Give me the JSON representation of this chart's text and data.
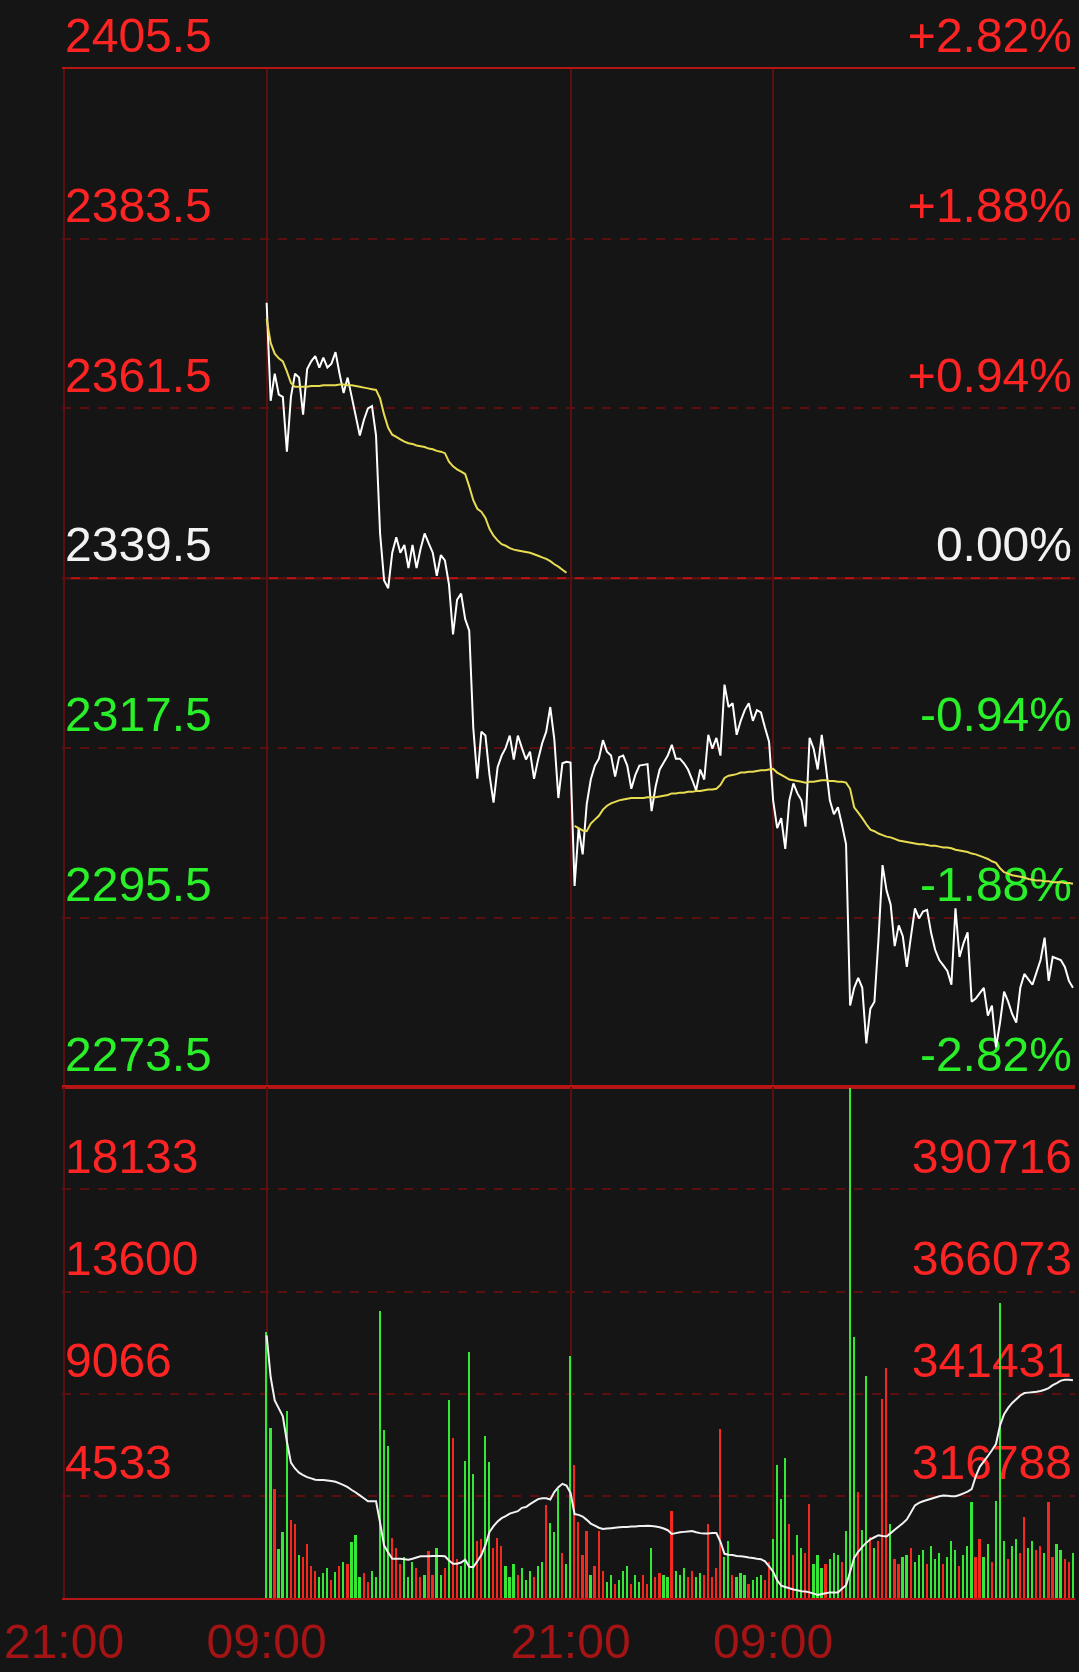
{
  "chart_data": [
    {
      "type": "line",
      "categories": [
        null,
        null,
        null,
        null,
        null,
        null,
        null,
        null,
        null,
        null,
        null,
        null,
        null,
        null,
        null,
        null,
        null,
        null,
        null,
        null,
        null,
        null,
        null,
        null,
        null,
        null,
        null,
        null,
        null,
        null,
        null,
        null,
        null,
        null,
        null,
        null,
        null,
        null,
        null,
        null,
        null,
        null,
        null,
        null,
        null,
        null,
        null,
        null,
        null,
        null,
        null,
        null,
        null,
        null,
        null,
        null,
        null,
        null,
        null,
        null,
        null,
        null,
        null,
        null,
        null,
        null,
        null,
        null,
        null,
        null,
        null,
        null,
        null,
        null,
        null,
        null,
        null,
        null,
        null,
        null,
        null,
        null,
        null,
        null,
        null,
        null,
        null,
        null,
        null,
        null,
        null,
        null,
        null,
        null,
        null,
        null,
        null,
        null,
        null,
        null,
        null,
        null,
        null,
        null,
        null,
        null,
        null,
        null,
        null,
        null,
        null,
        null,
        null,
        null,
        null,
        null,
        null,
        null,
        null,
        null,
        null,
        null,
        null,
        null,
        null,
        null,
        null,
        null,
        null,
        null,
        null,
        null,
        null,
        null,
        null,
        null,
        null,
        null,
        null,
        null,
        null,
        null,
        null,
        null,
        null,
        null,
        null,
        null,
        null,
        null,
        null,
        null,
        null,
        null,
        null,
        null,
        null,
        null,
        null,
        null,
        null,
        null,
        null,
        null,
        null,
        null,
        null,
        null,
        null,
        null,
        null,
        null,
        null,
        null,
        null,
        null,
        null,
        null,
        null,
        null,
        null,
        null,
        null,
        null,
        null,
        null,
        null,
        null,
        null,
        null,
        null,
        null,
        null,
        null,
        null,
        null,
        null,
        null,
        null,
        null,
        null,
        null,
        null,
        null,
        null,
        null,
        null,
        null,
        null,
        null,
        null,
        null,
        null,
        null,
        null,
        null,
        null,
        null,
        null,
        null,
        null,
        null,
        null,
        null,
        null,
        null,
        null,
        null,
        null,
        null,
        null,
        null,
        null,
        null,
        null,
        null,
        null,
        null,
        null,
        null,
        null,
        null,
        null,
        null,
        null,
        null,
        null,
        null,
        null,
        null
      ],
      "ylim": [
        2273.5,
        2405.5
      ],
      "yticks": [
        2273.5,
        2295.5,
        2317.5,
        2339.5,
        2361.5,
        2383.5,
        2405.5
      ],
      "y2lim": [
        -2.82,
        2.82
      ],
      "y2ticks": [
        {
          "value": -2.82,
          "label": "-2.82%"
        },
        {
          "value": -1.88,
          "label": "-1.88%"
        },
        {
          "value": -0.94,
          "label": "-0.94%"
        },
        {
          "value": 0,
          "label": "0.00%"
        },
        {
          "value": 0.94,
          "label": "+0.94%"
        },
        {
          "value": 1.88,
          "label": "+1.88%"
        },
        {
          "value": 2.82,
          "label": "+2.82%"
        }
      ],
      "grid": true,
      "ref_lines": [
        {
          "axis": "y",
          "value": 2339.5,
          "color": "#c81414"
        }
      ],
      "series": [
        {
          "color": "#ffffff",
          "values": [
            null,
            null,
            null,
            null,
            null,
            null,
            null,
            null,
            null,
            null,
            null,
            null,
            null,
            null,
            null,
            null,
            null,
            null,
            null,
            null,
            null,
            null,
            null,
            null,
            null,
            null,
            null,
            null,
            null,
            null,
            null,
            null,
            null,
            null,
            null,
            null,
            null,
            null,
            null,
            null,
            null,
            null,
            null,
            null,
            null,
            null,
            null,
            null,
            null,
            null,
            2375.2,
            2362.5,
            2366.0,
            2363.3,
            2363.0,
            2355.9,
            2363.0,
            2366.0,
            2365.5,
            2360.7,
            2366.6,
            2367.6,
            2368.3,
            2366.8,
            2368.1,
            2366.8,
            2367.3,
            2368.8,
            2366.0,
            2363.5,
            2365.5,
            2363.0,
            2360.5,
            2358.0,
            2360.0,
            2361.5,
            2361.8,
            2358.0,
            2345.3,
            2339.2,
            2338.2,
            2342.8,
            2344.8,
            2342.8,
            2343.8,
            2340.8,
            2343.8,
            2340.8,
            2343.3,
            2345.3,
            2344.0,
            2342.8,
            2339.8,
            2342.5,
            2341.8,
            2338.7,
            2332.2,
            2336.7,
            2337.5,
            2334.2,
            2332.7,
            2320.1,
            2313.5,
            2319.6,
            2319.1,
            2314.0,
            2310.4,
            2315.0,
            2316.5,
            2317.5,
            2319.1,
            2316.0,
            2319.1,
            2317.5,
            2316.0,
            2317.0,
            2313.5,
            2316.0,
            2318.1,
            2319.6,
            2322.8,
            2318.6,
            2311.0,
            2315.5,
            2315.7,
            2315.6,
            2299.6,
            2307.1,
            2303.7,
            2310.2,
            2313.4,
            2315.2,
            2316.1,
            2318.5,
            2317.0,
            2316.5,
            2313.8,
            2316.3,
            2316.5,
            2315.2,
            2312.2,
            2314.0,
            2315.2,
            2315.3,
            2315.4,
            2309.3,
            2312.5,
            2314.7,
            2315.6,
            2316.5,
            2317.9,
            2316.1,
            2316.1,
            2315.5,
            2314.7,
            2313.4,
            2312.0,
            2314.7,
            2313.4,
            2319.2,
            2317.4,
            2318.8,
            2316.5,
            2325.7,
            2322.8,
            2323.3,
            2319.2,
            2321.0,
            2322.4,
            2323.3,
            2321.0,
            2322.4,
            2322.1,
            2320.1,
            2318.3,
            2310.7,
            2307.1,
            2308.4,
            2304.4,
            2310.7,
            2312.9,
            2311.6,
            2310.7,
            2307.3,
            2318.8,
            2317.4,
            2314.7,
            2319.2,
            2315.2,
            2310.7,
            2308.9,
            2309.8,
            2307.5,
            2305.0,
            2284.1,
            2286.4,
            2287.7,
            2286.4,
            2279.2,
            2283.7,
            2284.6,
            2292.7,
            2302.3,
            2299.0,
            2297.2,
            2291.8,
            2294.5,
            2293.1,
            2289.1,
            2293.0,
            2296.7,
            2295.4,
            2296.3,
            2296.5,
            2293.5,
            2291.3,
            2290.0,
            2289.3,
            2288.6,
            2286.8,
            2296.7,
            2290.4,
            2292.2,
            2293.6,
            2284.6,
            2285.0,
            2285.7,
            2286.4,
            2282.8,
            2284.1,
            2278.7,
            2281.9,
            2285.9,
            2284.6,
            2283.0,
            2281.9,
            2286.4,
            2288.2,
            2287.5,
            2286.8,
            2288.4,
            2290.0,
            2292.9,
            2287.3,
            2290.4,
            2290.2,
            2290.0,
            2289.1,
            2287.3,
            2286.4
          ]
        },
        {
          "color": "#e8dc50",
          "values": [
            null,
            null,
            null,
            null,
            null,
            null,
            null,
            null,
            null,
            null,
            null,
            null,
            null,
            null,
            null,
            null,
            null,
            null,
            null,
            null,
            null,
            null,
            null,
            null,
            null,
            null,
            null,
            null,
            null,
            null,
            null,
            null,
            null,
            null,
            null,
            null,
            null,
            null,
            null,
            null,
            null,
            null,
            null,
            null,
            null,
            null,
            null,
            null,
            null,
            null,
            2373.1,
            2370.0,
            2368.6,
            2368.0,
            2367.6,
            2366.3,
            2364.8,
            2364.3,
            2364.3,
            2364.3,
            2364.3,
            2364.4,
            2364.4,
            2364.4,
            2364.5,
            2364.5,
            2364.5,
            2364.5,
            2364.6,
            2364.6,
            2364.5,
            2364.5,
            2364.4,
            2364.3,
            2364.2,
            2364.1,
            2364.0,
            2363.9,
            2362.8,
            2360.7,
            2359.0,
            2358.1,
            2357.8,
            2357.5,
            2357.2,
            2357.0,
            2356.9,
            2356.7,
            2356.6,
            2356.5,
            2356.3,
            2356.2,
            2356.0,
            2355.9,
            2355.7,
            2354.6,
            2354.0,
            2353.6,
            2353.3,
            2353.0,
            2351.4,
            2349.6,
            2348.5,
            2348.1,
            2347.3,
            2345.9,
            2345.0,
            2344.4,
            2343.9,
            2343.7,
            2343.4,
            2343.2,
            2343.1,
            2343.0,
            2342.9,
            2342.8,
            2342.6,
            2342.4,
            2342.2,
            2342.0,
            2341.7,
            2341.3,
            2341.0,
            2340.6,
            2340.2,
            null,
            2307.4,
            2307.1,
            2306.8,
            2306.7,
            2307.7,
            2308.2,
            2308.7,
            2309.5,
            2310.0,
            2310.3,
            2310.5,
            2310.7,
            2310.8,
            2310.9,
            2311.0,
            2311.0,
            2311.0,
            2311.0,
            2311.1,
            2311.1,
            2311.1,
            2311.2,
            2311.3,
            2311.4,
            2311.6,
            2311.6,
            2311.7,
            2311.7,
            2311.8,
            2311.8,
            2311.9,
            2311.9,
            2312.0,
            2312.1,
            2312.1,
            2312.2,
            2312.7,
            2313.6,
            2313.9,
            2314.0,
            2314.1,
            2314.3,
            2314.3,
            2314.4,
            2314.4,
            2314.5,
            2314.6,
            2314.6,
            2314.7,
            2314.8,
            2314.3,
            2314.0,
            2313.7,
            2313.4,
            2313.3,
            2313.2,
            2313.1,
            2313.0,
            2313.1,
            2313.1,
            2313.2,
            2313.3,
            2313.3,
            2313.2,
            2313.2,
            2313.1,
            2313.1,
            2313.0,
            2312.2,
            2309.8,
            2309.1,
            2308.4,
            2307.6,
            2306.9,
            2306.7,
            2306.4,
            2306.2,
            2306.0,
            2305.9,
            2305.7,
            2305.5,
            2305.4,
            2305.3,
            2305.2,
            2305.1,
            2305.0,
            2305.0,
            2304.9,
            2304.8,
            2304.8,
            2304.7,
            2304.6,
            2304.6,
            2304.5,
            2304.3,
            2304.2,
            2304.1,
            2304.0,
            2303.8,
            2303.7,
            2303.5,
            2303.3,
            2303.1,
            2302.8,
            2302.6,
            2301.9,
            2301.4,
            2301.2,
            2301.0,
            2300.9,
            2300.8,
            2300.7,
            2300.5,
            2300.4,
            2300.3,
            2300.3,
            2300.2,
            2300.2,
            2300.1,
            2300.1,
            2300.1,
            2300.0,
            2300.0,
            2299.9
          ]
        }
      ]
    },
    {
      "type": "bar",
      "categories": [
        "21:00",
        null,
        null,
        null,
        null,
        null,
        null,
        null,
        null,
        null,
        null,
        null,
        null,
        null,
        null,
        null,
        null,
        null,
        null,
        null,
        null,
        null,
        null,
        null,
        null,
        null,
        null,
        null,
        null,
        null,
        null,
        null,
        null,
        null,
        null,
        null,
        null,
        null,
        null,
        null,
        null,
        null,
        null,
        null,
        null,
        null,
        null,
        null,
        null,
        null,
        "09:00",
        null,
        null,
        null,
        null,
        null,
        null,
        null,
        null,
        null,
        null,
        null,
        null,
        null,
        null,
        null,
        null,
        null,
        null,
        null,
        null,
        null,
        null,
        null,
        null,
        null,
        null,
        null,
        null,
        null,
        null,
        null,
        null,
        null,
        null,
        null,
        null,
        null,
        null,
        null,
        null,
        null,
        null,
        null,
        null,
        null,
        null,
        null,
        null,
        null,
        null,
        null,
        null,
        null,
        null,
        null,
        null,
        null,
        null,
        null,
        null,
        null,
        null,
        null,
        null,
        null,
        null,
        null,
        null,
        null,
        null,
        null,
        null,
        null,
        null,
        "21:00",
        null,
        null,
        null,
        null,
        null,
        null,
        null,
        null,
        null,
        null,
        null,
        null,
        null,
        null,
        null,
        null,
        null,
        null,
        null,
        null,
        null,
        null,
        null,
        null,
        null,
        null,
        null,
        null,
        null,
        null,
        null,
        null,
        null,
        null,
        null,
        null,
        null,
        null,
        null,
        null,
        null,
        null,
        null,
        null,
        null,
        null,
        null,
        null,
        null,
        "09:00",
        null,
        null,
        null,
        null,
        null,
        null,
        null,
        null,
        null,
        null,
        null,
        null,
        null,
        null,
        null,
        null,
        null,
        null,
        null,
        null,
        null,
        null,
        null,
        null,
        null,
        null,
        null,
        null,
        null,
        null,
        null,
        null,
        null,
        null,
        null,
        null,
        null,
        null,
        null,
        null,
        null,
        null,
        null,
        null,
        null,
        null,
        null,
        null,
        null,
        null,
        null,
        null,
        null,
        null,
        null,
        null,
        null,
        null,
        null,
        null,
        null,
        null,
        null,
        null,
        null,
        null,
        null,
        null,
        null,
        null,
        null,
        null,
        null,
        null
      ],
      "ylim": [
        0,
        22666
      ],
      "yticks": [
        4533,
        9066,
        13600,
        18133
      ],
      "y2lim": [
        292145,
        415359
      ],
      "y2ticks": [
        316788,
        341431,
        366073,
        390716
      ],
      "grid": true,
      "series": [
        {
          "values": [
            null,
            null,
            null,
            null,
            null,
            null,
            null,
            null,
            null,
            null,
            null,
            null,
            null,
            null,
            null,
            null,
            null,
            null,
            null,
            null,
            null,
            null,
            null,
            null,
            null,
            null,
            null,
            null,
            null,
            null,
            null,
            null,
            null,
            null,
            null,
            null,
            null,
            null,
            null,
            null,
            null,
            null,
            null,
            null,
            null,
            null,
            null,
            null,
            null,
            null,
            11780,
            7530,
            4830,
            2150,
            2900,
            8270,
            3440,
            3290,
            1900,
            1800,
            2400,
            1400,
            1200,
            900,
            1100,
            1300,
            800,
            1150,
            1400,
            1600,
            1500,
            2490,
            2780,
            900,
            1100,
            700,
            1200,
            900,
            12730,
            7450,
            6730,
            2650,
            2200,
            1500,
            1800,
            900,
            1600,
            1300,
            900,
            1000,
            2050,
            1000,
            2200,
            1000,
            1300,
            8780,
            7100,
            1700,
            1400,
            6070,
            10900,
            5490,
            2500,
            2600,
            7170,
            6000,
            2200,
            2650,
            2300,
            1400,
            900,
            1500,
            1000,
            1300,
            800,
            1200,
            900,
            1400,
            1600,
            4100,
            3300,
            2900,
            4830,
            2000,
            1500,
            10720,
            5900,
            3360,
            1900,
            2950,
            1000,
            1400,
            2950,
            1200,
            700,
            1000,
            600,
            800,
            1200,
            1400,
            600,
            1000,
            700,
            1000,
            600,
            2200,
            900,
            1100,
            1000,
            900,
            3860,
            1200,
            1000,
            1300,
            900,
            1200,
            900,
            1100,
            1000,
            3260,
            900,
            1300,
            7480,
            1800,
            2500,
            1000,
            900,
            1100,
            1000,
            600,
            800,
            900,
            1000,
            800,
            1600,
            2600,
            5900,
            4400,
            6200,
            3260,
            1900,
            2800,
            2200,
            2000,
            4160,
            1500,
            1900,
            1300,
            1500,
            1700,
            2000,
            1900,
            1600,
            2950,
            22600,
            11550,
            4690,
            3000,
            9820,
            2700,
            2200,
            2500,
            8840,
            10190,
            3260,
            1700,
            1500,
            1800,
            1900,
            2200,
            1600,
            1900,
            2100,
            1500,
            2300,
            1700,
            2000,
            1500,
            1800,
            2500,
            2100,
            1400,
            1900,
            2300,
            4240,
            1800,
            2600,
            1800,
            2400,
            1600,
            4310,
            13060,
            2500,
            1700,
            2300,
            2600,
            2000,
            3560,
            2200,
            2500,
            2100,
            2300,
            2000,
            4240,
            1800,
            2400,
            2100,
            1700,
            1600,
            2000
          ],
          "colors": [
            null,
            null,
            null,
            null,
            null,
            null,
            null,
            null,
            null,
            null,
            null,
            null,
            null,
            null,
            null,
            null,
            null,
            null,
            null,
            null,
            null,
            null,
            null,
            null,
            null,
            null,
            null,
            null,
            null,
            null,
            null,
            null,
            null,
            null,
            null,
            null,
            null,
            null,
            null,
            null,
            null,
            null,
            null,
            null,
            null,
            null,
            null,
            null,
            null,
            null,
            "#35e835",
            "#35e835",
            "#f5281e",
            "#35e835",
            "#35e835",
            "#35e835",
            "#f5281e",
            "#f5281e",
            "#35e835",
            "#f5281e",
            "#f5281e",
            "#f5281e",
            "#f5281e",
            "#35e835",
            "#35e835",
            "#35e835",
            "#f5281e",
            "#35e835",
            "#f5281e",
            "#35e835",
            "#f5281e",
            "#35e835",
            "#35e835",
            "#35e835",
            "#f5281e",
            "#f5281e",
            "#35e835",
            "#35e835",
            "#35e835",
            "#35e835",
            "#35e835",
            "#f5281e",
            "#f5281e",
            "#f5281e",
            "#35e835",
            "#35e835",
            "#35e835",
            "#f5281e",
            "#f5281e",
            "#35e835",
            "#f5281e",
            "#f5281e",
            "#35e835",
            "#35e835",
            "#f5281e",
            "#35e835",
            "#f5281e",
            "#f5281e",
            "#35e835",
            "#35e835",
            "#35e835",
            "#35e835",
            "#f5281e",
            "#f5281e",
            "#35e835",
            "#35e835",
            "#f5281e",
            "#f5281e",
            "#f5281e",
            "#35e835",
            "#35e835",
            "#35e835",
            "#f5281e",
            "#35e835",
            "#35e835",
            "#35e835",
            "#f5281e",
            "#35e835",
            "#35e835",
            "#f5281e",
            "#35e835",
            "#35e835",
            "#35e835",
            "#f5281e",
            "#35e835",
            "#35e835",
            "#f5281e",
            "#f5281e",
            "#f5281e",
            "#f5281e",
            "#35e835",
            "#f5281e",
            "#f5281e",
            "#f5281e",
            "#35e835",
            "#35e835",
            "#f5281e",
            "#35e835",
            "#35e835",
            "#35e835",
            "#f5281e",
            "#35e835",
            "#35e835",
            "#f5281e",
            "#f5281e",
            "#35e835",
            "#f5281e",
            "#f5281e",
            "#35e835",
            "#35e835",
            "#f5281e",
            "#35e835",
            "#35e835",
            "#35e835",
            "#f5281e",
            "#f5281e",
            "#35e835",
            "#35e835",
            "#f5281e",
            "#f5281e",
            "#f5281e",
            "#f5281e",
            "#f5281e",
            "#35e835",
            "#35e835",
            "#f5281e",
            "#35e835",
            "#35e835",
            "#35e835",
            "#f5281e",
            "#35e835",
            "#35e835",
            "#35e835",
            "#f5281e",
            "#f5281e",
            "#35e835",
            "#35e835",
            "#35e835",
            "#35e835",
            "#f5281e",
            "#f5281e",
            "#35e835",
            "#35e835",
            "#f5281e",
            "#f5281e",
            "#35e835",
            "#35e835",
            "#35e835",
            "#f5281e",
            "#35e835",
            "#35e835",
            "#35e835",
            "#f5281e",
            "#35e835",
            "#35e835",
            "#35e835",
            "#f5281e",
            "#35e835",
            "#35e835",
            "#f5281e",
            "#35e835",
            "#f5281e",
            "#f5281e",
            "#f5281e",
            "#35e835",
            "#f5281e",
            "#f5281e",
            "#35e835",
            "#35e835",
            "#f5281e",
            "#35e835",
            "#35e835",
            "#35e835",
            "#f5281e",
            "#35e835",
            "#35e835",
            "#35e835",
            "#f5281e",
            "#35e835",
            "#35e835",
            "#35e835",
            "#f5281e",
            "#35e835",
            "#35e835",
            "#35e835",
            "#f5281e",
            "#f5281e",
            "#35e835",
            "#35e835",
            "#f5281e",
            "#35e835",
            "#35e835",
            "#35e835",
            "#f5281e",
            "#35e835",
            "#35e835",
            "#f5281e",
            "#f5281e",
            "#35e835",
            "#35e835",
            "#f5281e",
            "#f5281e",
            "#35e835",
            "#f5281e",
            "#f5281e",
            "#35e835",
            "#35e835",
            "#f5281e",
            "#f5281e",
            "#35e835"
          ]
        },
        {
          "type": "line",
          "axis": "y2",
          "color": "#f2f2f2",
          "values": [
            null,
            null,
            null,
            null,
            null,
            null,
            null,
            null,
            null,
            null,
            null,
            null,
            null,
            null,
            null,
            null,
            null,
            null,
            null,
            null,
            null,
            null,
            null,
            null,
            null,
            null,
            null,
            null,
            null,
            null,
            null,
            null,
            null,
            null,
            null,
            null,
            null,
            null,
            null,
            null,
            null,
            null,
            null,
            null,
            null,
            null,
            null,
            null,
            null,
            null,
            355500,
            345400,
            339800,
            337900,
            336000,
            329900,
            324800,
            323400,
            322400,
            321800,
            321300,
            321000,
            320700,
            320600,
            320600,
            320500,
            320400,
            320200,
            319800,
            319400,
            318900,
            318200,
            317600,
            316900,
            316200,
            315500,
            315500,
            315500,
            310300,
            304800,
            303100,
            301600,
            301600,
            301600,
            301500,
            301400,
            301600,
            301900,
            302200,
            302200,
            302200,
            302300,
            302300,
            302300,
            302200,
            301200,
            300400,
            300400,
            300700,
            301400,
            299700,
            299600,
            301000,
            302500,
            304900,
            308100,
            309500,
            310600,
            311400,
            311900,
            312500,
            312800,
            313100,
            313900,
            314100,
            314800,
            315400,
            316000,
            316200,
            316200,
            315900,
            317700,
            318900,
            319700,
            319300,
            317500,
            312400,
            312200,
            311800,
            311000,
            310100,
            309600,
            309100,
            308800,
            308900,
            309000,
            309100,
            309200,
            309300,
            309300,
            309400,
            309400,
            309500,
            309500,
            309600,
            309500,
            309400,
            309200,
            308900,
            308500,
            307600,
            307800,
            308000,
            308100,
            308200,
            308300,
            308000,
            307800,
            307700,
            307700,
            307800,
            307800,
            305700,
            302800,
            302600,
            302500,
            302300,
            302200,
            302100,
            301900,
            301800,
            301600,
            301500,
            301000,
            299800,
            298500,
            296400,
            295100,
            294800,
            294500,
            294200,
            294000,
            293800,
            293700,
            293500,
            293200,
            292900,
            293100,
            293300,
            293500,
            293500,
            293500,
            294400,
            295200,
            298500,
            301800,
            303300,
            304500,
            305500,
            306300,
            306800,
            307300,
            307100,
            307000,
            307800,
            308600,
            309400,
            310200,
            311100,
            312800,
            314500,
            315100,
            315500,
            315800,
            316100,
            316400,
            316700,
            316900,
            316800,
            316700,
            316700,
            317000,
            317400,
            317800,
            318400,
            321500,
            323800,
            325100,
            326400,
            327800,
            329300,
            333800,
            336500,
            338000,
            339200,
            340100,
            341000,
            341600,
            341700,
            341800,
            341900,
            342100,
            342400,
            342800,
            343500,
            344000,
            344600,
            344800,
            344800,
            344700
          ]
        }
      ]
    }
  ]
}
